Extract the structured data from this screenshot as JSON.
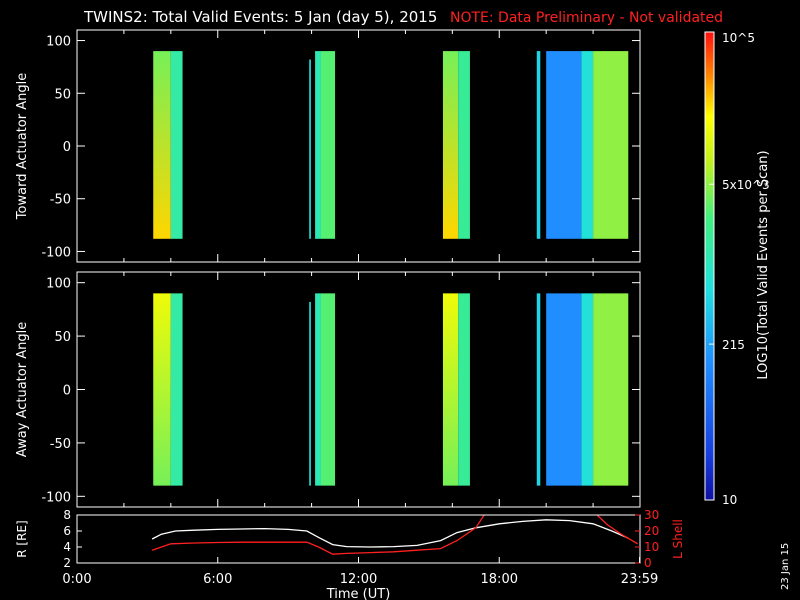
{
  "header": {
    "title": "TWINS2: Total Valid Events:  5 Jan (day   5), 2015",
    "note": "NOTE: Data Preliminary - Not validated",
    "note_color": "#ff2020"
  },
  "footer": {
    "date_stamp": "23 Jan 15"
  },
  "colorbar": {
    "label": "LOG10(Total Valid Events per Scan)",
    "scale": "log",
    "range": [
      10,
      100000
    ],
    "ticks": [
      {
        "value": 100000,
        "label": "10^5"
      },
      {
        "value": 5000,
        "label": "5x10^3"
      },
      {
        "value": 215,
        "label": "215"
      },
      {
        "value": 10,
        "label": "10"
      }
    ]
  },
  "chart_data": [
    {
      "type": "heatmap",
      "ylabel": "Toward Actuator Angle",
      "xlim": [
        0,
        24
      ],
      "ylim": [
        -110,
        110
      ],
      "yticks": [
        -100,
        -50,
        0,
        50,
        100
      ],
      "blocks": [
        {
          "t0": 3.25,
          "t1": 4.0,
          "y0": -88,
          "y1": 90,
          "value_top": 4000,
          "value_bottom": 25000
        },
        {
          "t0": 4.0,
          "t1": 4.5,
          "y0": -88,
          "y1": 90,
          "value_top": 1500,
          "value_bottom": 1500
        },
        {
          "t0": 9.9,
          "t1": 9.97,
          "y0": -88,
          "y1": 82,
          "value_top": 700,
          "value_bottom": 700
        },
        {
          "t0": 10.15,
          "t1": 10.4,
          "y0": -88,
          "y1": 90,
          "value_top": 1200,
          "value_bottom": 1200
        },
        {
          "t0": 10.4,
          "t1": 11.0,
          "y0": -88,
          "y1": 90,
          "value_top": 3000,
          "value_bottom": 3000
        },
        {
          "t0": 15.6,
          "t1": 16.25,
          "y0": -88,
          "y1": 90,
          "value_top": 4000,
          "value_bottom": 25000
        },
        {
          "t0": 16.25,
          "t1": 16.75,
          "y0": -88,
          "y1": 90,
          "value_top": 1800,
          "value_bottom": 1800
        },
        {
          "t0": 19.6,
          "t1": 19.75,
          "y0": -88,
          "y1": 90,
          "value_top": 500,
          "value_bottom": 500
        },
        {
          "t0": 20.0,
          "t1": 21.5,
          "y0": -88,
          "y1": 90,
          "value_top": 150,
          "value_bottom": 150
        },
        {
          "t0": 21.5,
          "t1": 22.0,
          "y0": -88,
          "y1": 90,
          "value_top": 700,
          "value_bottom": 700
        },
        {
          "t0": 22.0,
          "t1": 23.5,
          "y0": -88,
          "y1": 90,
          "value_top": 5000,
          "value_bottom": 5000
        }
      ]
    },
    {
      "type": "heatmap",
      "ylabel": "Away Actuator Angle",
      "xlim": [
        0,
        24
      ],
      "ylim": [
        -110,
        110
      ],
      "yticks": [
        -100,
        -50,
        0,
        50,
        100
      ],
      "blocks": [
        {
          "t0": 3.25,
          "t1": 4.0,
          "y0": -90,
          "y1": 90,
          "value_top": 15000,
          "value_bottom": 4000
        },
        {
          "t0": 4.0,
          "t1": 4.5,
          "y0": -90,
          "y1": 90,
          "value_top": 1500,
          "value_bottom": 1500
        },
        {
          "t0": 9.9,
          "t1": 9.97,
          "y0": -90,
          "y1": 82,
          "value_top": 700,
          "value_bottom": 700
        },
        {
          "t0": 10.15,
          "t1": 10.4,
          "y0": -90,
          "y1": 90,
          "value_top": 1200,
          "value_bottom": 1200
        },
        {
          "t0": 10.4,
          "t1": 11.0,
          "y0": -90,
          "y1": 90,
          "value_top": 3000,
          "value_bottom": 3000
        },
        {
          "t0": 15.6,
          "t1": 16.25,
          "y0": -90,
          "y1": 90,
          "value_top": 15000,
          "value_bottom": 4000
        },
        {
          "t0": 16.25,
          "t1": 16.75,
          "y0": -90,
          "y1": 90,
          "value_top": 1800,
          "value_bottom": 1800
        },
        {
          "t0": 19.6,
          "t1": 19.75,
          "y0": -90,
          "y1": 90,
          "value_top": 500,
          "value_bottom": 500
        },
        {
          "t0": 20.0,
          "t1": 21.5,
          "y0": -90,
          "y1": 90,
          "value_top": 150,
          "value_bottom": 150
        },
        {
          "t0": 21.5,
          "t1": 22.0,
          "y0": -90,
          "y1": 90,
          "value_top": 700,
          "value_bottom": 700
        },
        {
          "t0": 22.0,
          "t1": 23.5,
          "y0": -90,
          "y1": 90,
          "value_top": 5000,
          "value_bottom": 5000
        }
      ]
    },
    {
      "type": "line",
      "xlabel": "Time (UT)",
      "xlim": [
        0,
        24
      ],
      "xticks": [
        0,
        6,
        12,
        18,
        23.98
      ],
      "xtick_labels": [
        "0:00",
        "6:00",
        "12:00",
        "18:00",
        "23:59"
      ],
      "ylabel_left": "R [RE]",
      "ylabel_right": "L Shell",
      "ylim_left": [
        2,
        8
      ],
      "yticks_left": [
        2,
        4,
        6,
        8
      ],
      "ylim_right": [
        0,
        30
      ],
      "yticks_right": [
        0,
        10,
        20,
        30
      ],
      "series": [
        {
          "axis": "left",
          "color": "#ffffff",
          "x": [
            3.2,
            3.6,
            4.2,
            5,
            6,
            7,
            8,
            9,
            9.8,
            10.3,
            10.9,
            11.5,
            12.5,
            13.5,
            14.5,
            15.5,
            16.2,
            17,
            18,
            19,
            20,
            21,
            22,
            22.8,
            23.5
          ],
          "y": [
            5.0,
            5.6,
            6.0,
            6.1,
            6.2,
            6.25,
            6.3,
            6.2,
            6.0,
            5.2,
            4.3,
            4.05,
            4.0,
            4.05,
            4.2,
            4.8,
            5.8,
            6.4,
            6.9,
            7.2,
            7.4,
            7.3,
            6.9,
            6.0,
            5.1
          ]
        },
        {
          "axis": "right",
          "color": "#ff2020",
          "x": [
            3.2,
            4.0,
            5,
            6,
            7,
            8,
            9,
            9.8,
            10.3,
            10.9,
            11.5,
            12.5,
            13.5,
            14.5,
            15.5,
            16.2,
            17.0,
            17.4
          ],
          "y": [
            8,
            12,
            12.5,
            12.8,
            13,
            13,
            13,
            13,
            10,
            5.5,
            6,
            6.5,
            7,
            8,
            9,
            14,
            22,
            31
          ]
        },
        {
          "axis": "right",
          "color": "#ff2020",
          "x": [
            22.1,
            22.6,
            23.2,
            23.9
          ],
          "y": [
            31,
            24,
            18,
            12
          ]
        }
      ]
    }
  ]
}
